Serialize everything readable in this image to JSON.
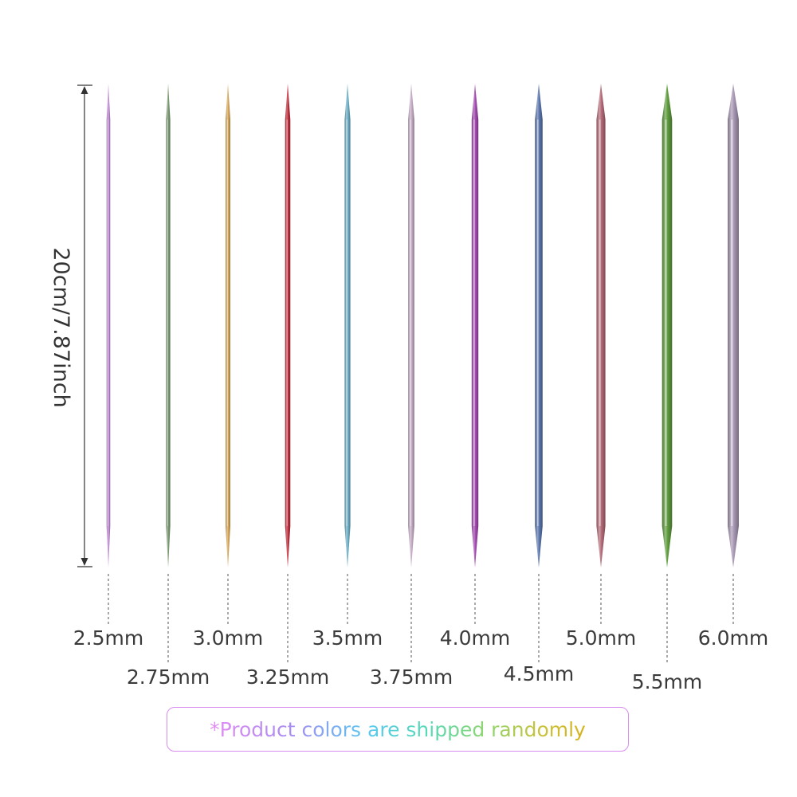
{
  "dimension": {
    "label": "20cm/7.87inch"
  },
  "needles": [
    {
      "size": "2.5mm",
      "color": "#c690db",
      "row": "top"
    },
    {
      "size": "2.75mm",
      "color": "#7c9a72",
      "row": "bottom"
    },
    {
      "size": "3.0mm",
      "color": "#d9a95a",
      "row": "top"
    },
    {
      "size": "3.25mm",
      "color": "#c2313f",
      "row": "bottom"
    },
    {
      "size": "3.5mm",
      "color": "#6fb2c9",
      "row": "top"
    },
    {
      "size": "3.75mm",
      "color": "#c7aec6",
      "row": "bottom"
    },
    {
      "size": "4.0mm",
      "color": "#a44ab0",
      "row": "top"
    },
    {
      "size": "4.5mm",
      "color": "#5a76ad",
      "row": "bottom"
    },
    {
      "size": "5.0mm",
      "color": "#b46a78",
      "row": "top"
    },
    {
      "size": "5.5mm",
      "color": "#5f9c3e",
      "row": "bottom"
    },
    {
      "size": "6.0mm",
      "color": "#a898b4",
      "row": "top"
    }
  ],
  "note": {
    "text": "*Product colors are shipped randomly"
  }
}
